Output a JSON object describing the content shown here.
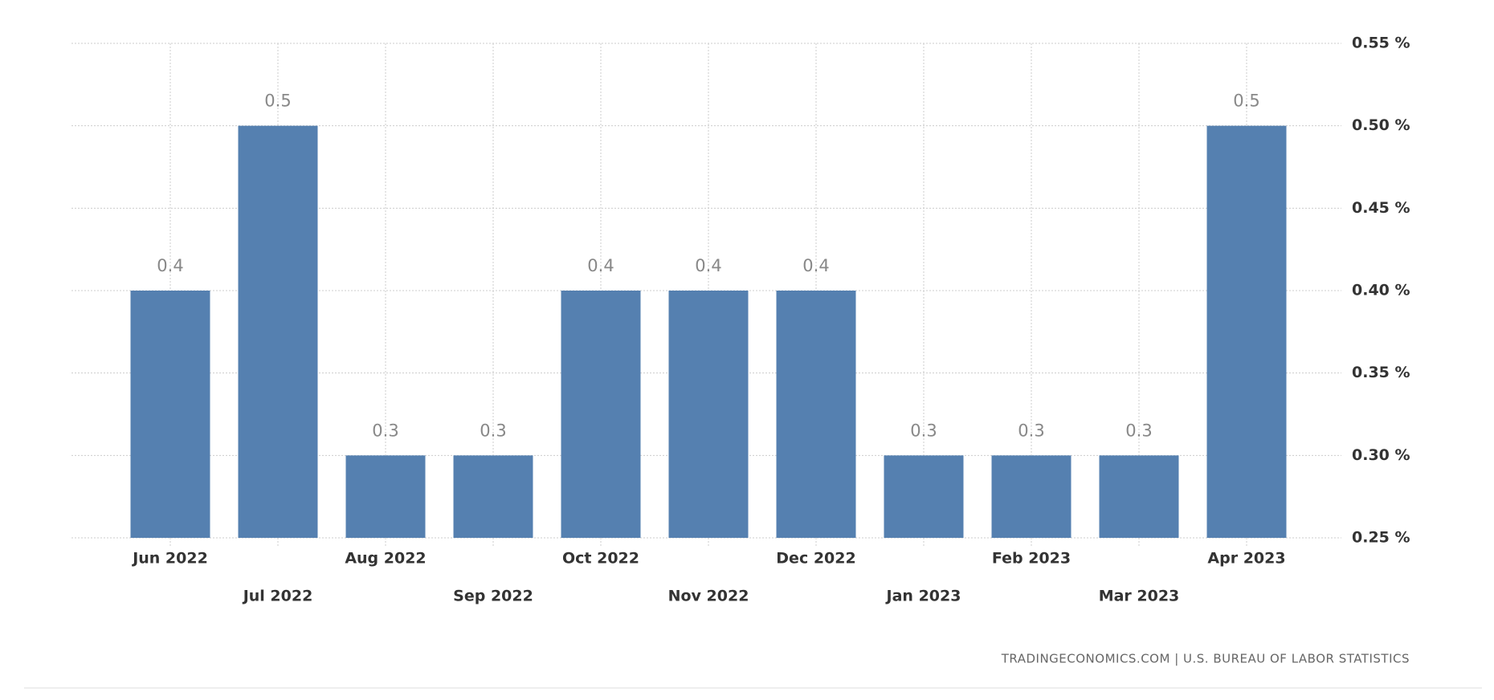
{
  "chart_data": {
    "type": "bar",
    "categories": [
      "Jun 2022",
      "Jul 2022",
      "Aug 2022",
      "Sep 2022",
      "Oct 2022",
      "Nov 2022",
      "Dec 2022",
      "Jan 2023",
      "Feb 2023",
      "Mar 2023",
      "Apr 2023"
    ],
    "values": [
      0.4,
      0.5,
      0.3,
      0.3,
      0.4,
      0.4,
      0.4,
      0.3,
      0.3,
      0.3,
      0.5
    ],
    "color": "#5580b0",
    "ylim": [
      0.25,
      0.55
    ],
    "yticks": [
      {
        "value": 0.25,
        "label": "0.25 %"
      },
      {
        "value": 0.3,
        "label": "0.30 %"
      },
      {
        "value": 0.35,
        "label": "0.35 %"
      },
      {
        "value": 0.4,
        "label": "0.40 %"
      },
      {
        "value": 0.45,
        "label": "0.45 %"
      },
      {
        "value": 0.5,
        "label": "0.50 %"
      },
      {
        "value": 0.55,
        "label": "0.55 %"
      }
    ],
    "grid": true,
    "source": "TRADINGECONOMICS.COM | U.S. BUREAU OF LABOR STATISTICS"
  }
}
